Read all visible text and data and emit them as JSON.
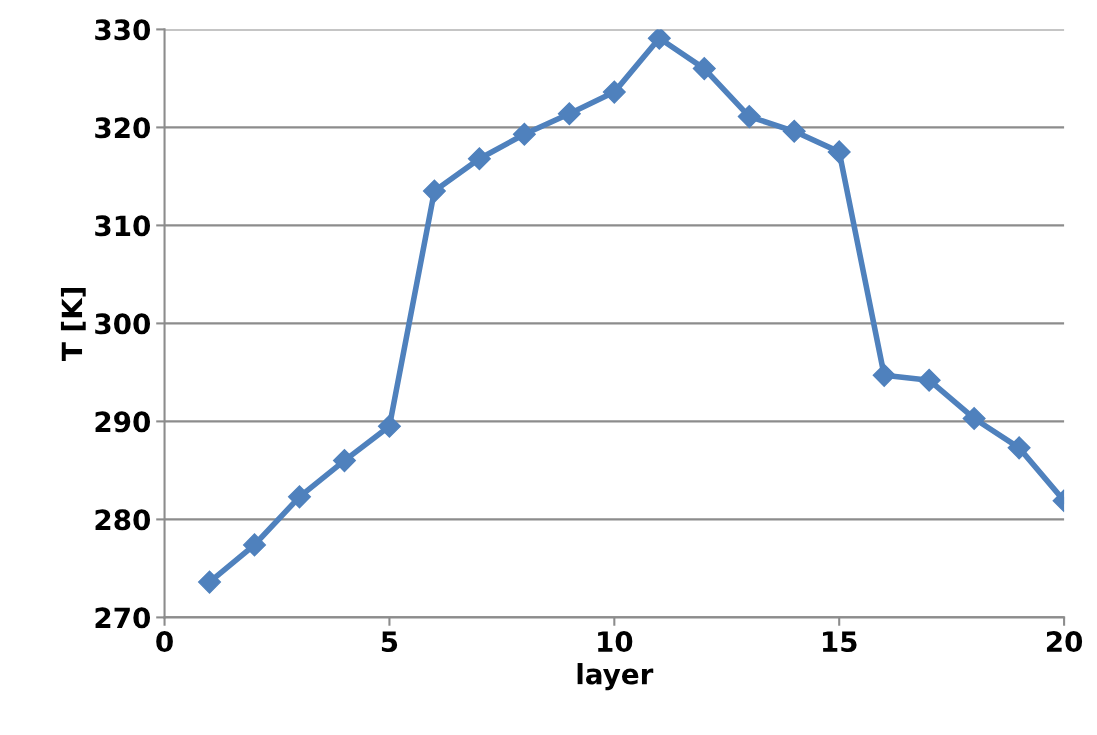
{
  "chart_data": {
    "type": "line",
    "xlabel": "layer",
    "ylabel": "T [K]",
    "x": [
      1,
      2,
      3,
      4,
      5,
      6,
      7,
      8,
      9,
      10,
      11,
      12,
      13,
      14,
      15,
      16,
      17,
      18,
      19,
      20
    ],
    "series": [
      {
        "color": "#4f81bd",
        "values": [
          273.6,
          277.4,
          282.3,
          286.0,
          289.5,
          313.5,
          316.8,
          319.3,
          321.4,
          323.6,
          329.1,
          326.0,
          321.1,
          319.6,
          317.5,
          294.7,
          294.2,
          290.3,
          287.3,
          281.9
        ]
      }
    ],
    "xlim": [
      0,
      20
    ],
    "xticks": [
      0,
      5,
      10,
      15,
      20
    ],
    "ylim": [
      270,
      330
    ],
    "yticks": [
      270,
      280,
      290,
      300,
      310,
      320,
      330
    ],
    "grid": "y",
    "marker": "diamond",
    "line_style": "solid",
    "legend": false
  }
}
